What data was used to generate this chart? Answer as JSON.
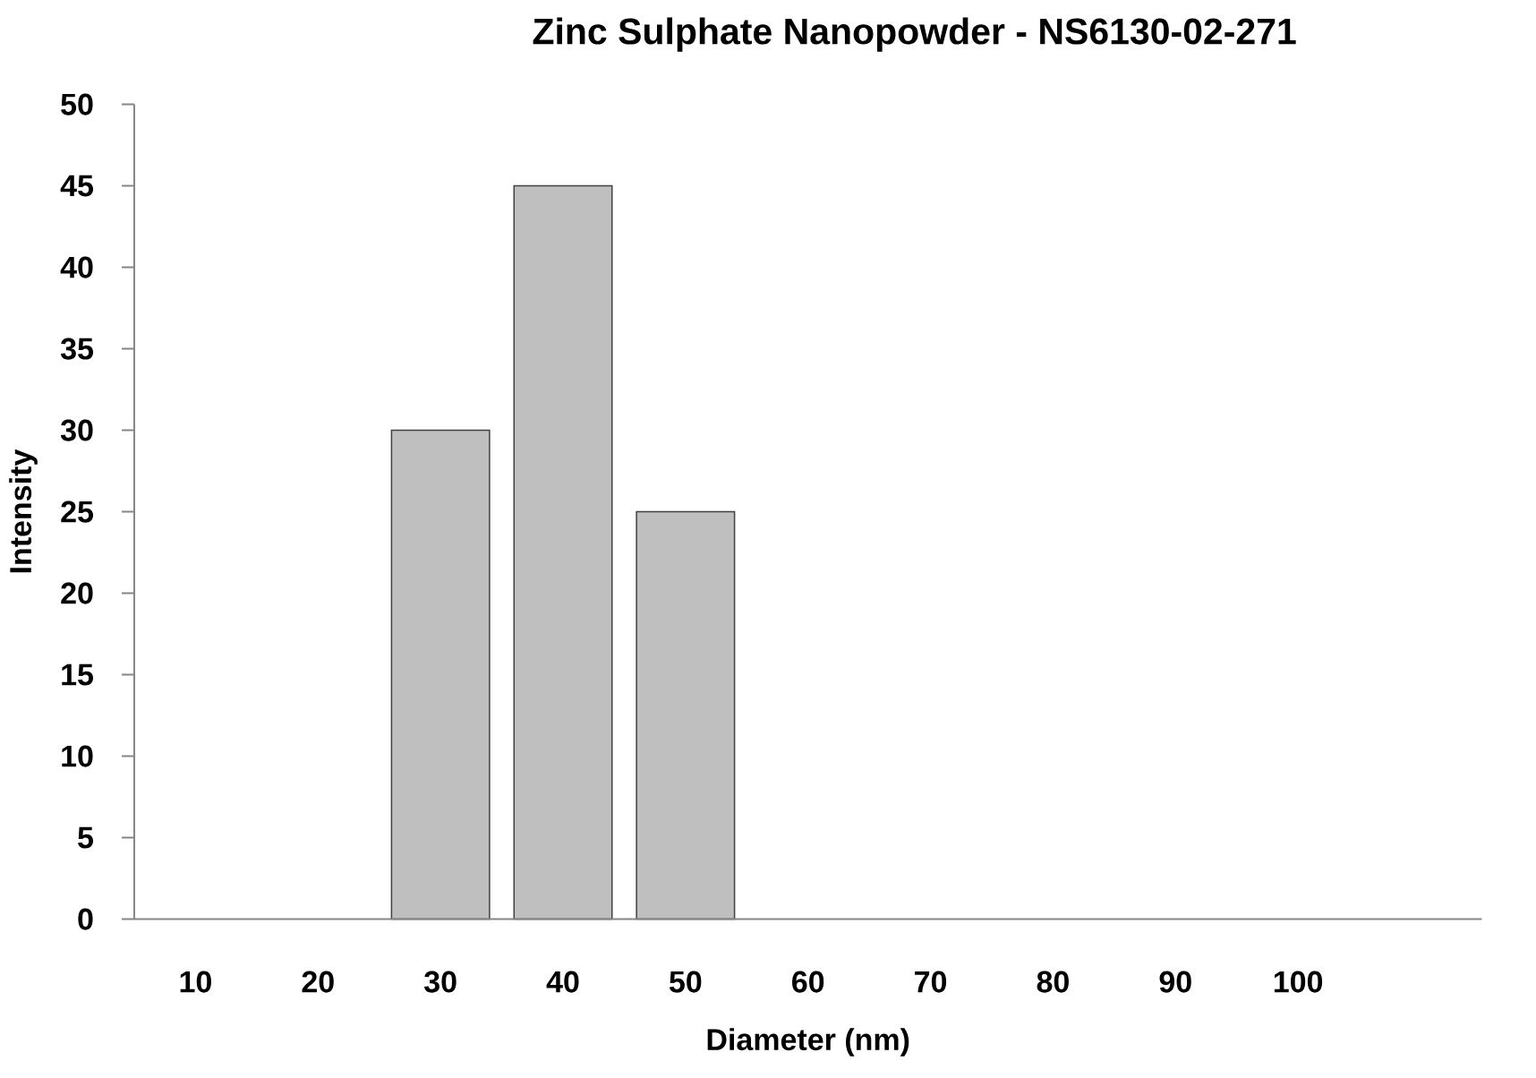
{
  "chart_data": {
    "type": "bar",
    "title": "Zinc Sulphate Nanopowder - NS6130-02-271",
    "xlabel": "Diameter (nm)",
    "ylabel": "Intensity",
    "categories": [
      "10",
      "20",
      "30",
      "40",
      "50",
      "60",
      "70",
      "80",
      "90",
      "100",
      null
    ],
    "values": [
      0,
      0,
      30,
      45,
      25,
      0,
      0,
      0,
      0,
      0,
      0
    ],
    "color": "#bfbfbf",
    "ylim": [
      0,
      50
    ],
    "yticks": [
      0,
      5,
      10,
      15,
      20,
      25,
      30,
      35,
      40,
      45,
      50
    ]
  }
}
